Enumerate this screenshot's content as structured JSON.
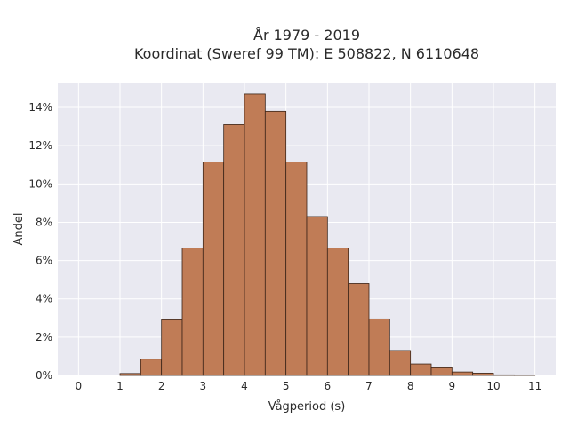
{
  "chart_data": {
    "type": "bar",
    "title": "År 1979 - 2019",
    "subtitle": "Koordinat (Sweref 99 TM): E 508822, N 6110648",
    "xlabel": "Vågperiod (s)",
    "ylabel": "Andel",
    "xlim": [
      -0.5,
      11.5
    ],
    "ylim": [
      0,
      15.3
    ],
    "x_ticks": [
      0,
      1,
      2,
      3,
      4,
      5,
      6,
      7,
      8,
      9,
      10,
      11
    ],
    "y_ticks": [
      0,
      2,
      4,
      6,
      8,
      10,
      12,
      14
    ],
    "y_tick_format": "%",
    "bin_width": 0.5,
    "bins": [
      {
        "start": 1.0,
        "value": 0.1
      },
      {
        "start": 1.5,
        "value": 0.85
      },
      {
        "start": 2.0,
        "value": 2.9
      },
      {
        "start": 2.5,
        "value": 6.65
      },
      {
        "start": 3.0,
        "value": 11.15
      },
      {
        "start": 3.5,
        "value": 13.1
      },
      {
        "start": 4.0,
        "value": 14.7
      },
      {
        "start": 4.5,
        "value": 13.8
      },
      {
        "start": 5.0,
        "value": 11.15
      },
      {
        "start": 5.5,
        "value": 8.3
      },
      {
        "start": 6.0,
        "value": 6.65
      },
      {
        "start": 6.5,
        "value": 4.8
      },
      {
        "start": 7.0,
        "value": 2.95
      },
      {
        "start": 7.5,
        "value": 1.3
      },
      {
        "start": 8.0,
        "value": 0.6
      },
      {
        "start": 8.5,
        "value": 0.4
      },
      {
        "start": 9.0,
        "value": 0.18
      },
      {
        "start": 9.5,
        "value": 0.12
      },
      {
        "start": 10.0,
        "value": 0.03
      },
      {
        "start": 10.5,
        "value": 0.01
      }
    ],
    "colors": {
      "bar": "#c07c56",
      "bar_edge": "#3b2418",
      "plot_background": "#e9e9f1",
      "grid": "#ffffff"
    },
    "grid": true
  }
}
